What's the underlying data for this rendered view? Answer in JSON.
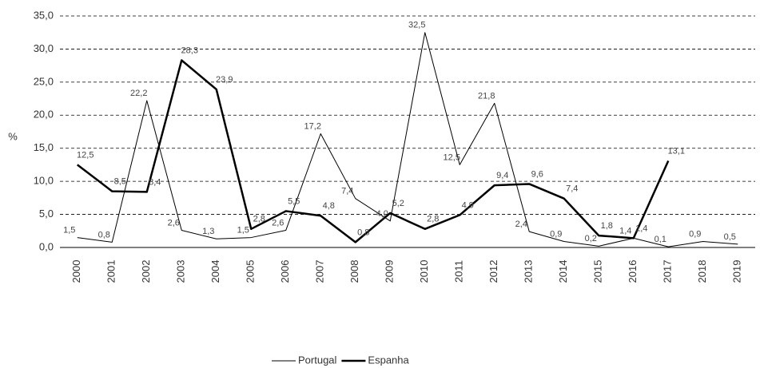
{
  "chart_data": {
    "type": "line",
    "y_label": "%",
    "categories": [
      "2000",
      "2001",
      "2002",
      "2003",
      "2004",
      "2005",
      "2006",
      "2007",
      "2008",
      "2009",
      "2010",
      "2011",
      "2012",
      "2013",
      "2014",
      "2015",
      "2016",
      "2017",
      "2018",
      "2019"
    ],
    "series": [
      {
        "name": "Portugal",
        "color": "#000000",
        "width": 1,
        "values": [
          1.5,
          0.8,
          22.2,
          2.6,
          1.3,
          1.5,
          2.6,
          17.2,
          7.4,
          4.0,
          32.5,
          12.5,
          21.8,
          2.4,
          0.9,
          0.2,
          1.4,
          0.1,
          0.9,
          0.5
        ],
        "value_labels": [
          "1,5",
          "0,8",
          "22,2",
          "2,6",
          "1,3",
          "1,5",
          "2,6",
          "17,2",
          "7,4",
          "4,0",
          "32,5",
          "12,5",
          "21,8",
          "2,4",
          "0,9",
          "0,2",
          "1,4",
          "0,1",
          "0,9",
          "0,5"
        ]
      },
      {
        "name": "Espanha",
        "color": "#000000",
        "width": 2.5,
        "values": [
          12.5,
          8.5,
          8.4,
          28.3,
          23.9,
          2.8,
          5.5,
          4.8,
          0.8,
          5.2,
          2.8,
          4.9,
          9.4,
          9.6,
          7.4,
          1.8,
          1.4,
          13.1,
          null,
          null
        ],
        "value_labels": [
          "12,5",
          "8,5",
          "8,4",
          "28,3",
          "23,9",
          "2,8",
          "5,5",
          "4,8",
          "0,8",
          "5,2",
          "2,8",
          "4,9",
          "9,4",
          "9,6",
          "7,4",
          "1,8",
          "1,4",
          "13,1",
          null,
          null
        ]
      }
    ],
    "ylim": [
      0,
      35
    ],
    "yticks": [
      {
        "value": 0,
        "label": "0,0"
      },
      {
        "value": 5,
        "label": "5,0"
      },
      {
        "value": 10,
        "label": "10,0"
      },
      {
        "value": 15,
        "label": "15,0"
      },
      {
        "value": 20,
        "label": "20,0"
      },
      {
        "value": 25,
        "label": "25,0"
      },
      {
        "value": 30,
        "label": "30,0"
      },
      {
        "value": 35,
        "label": "35,0"
      }
    ],
    "grid": true,
    "legend": "bottom"
  }
}
